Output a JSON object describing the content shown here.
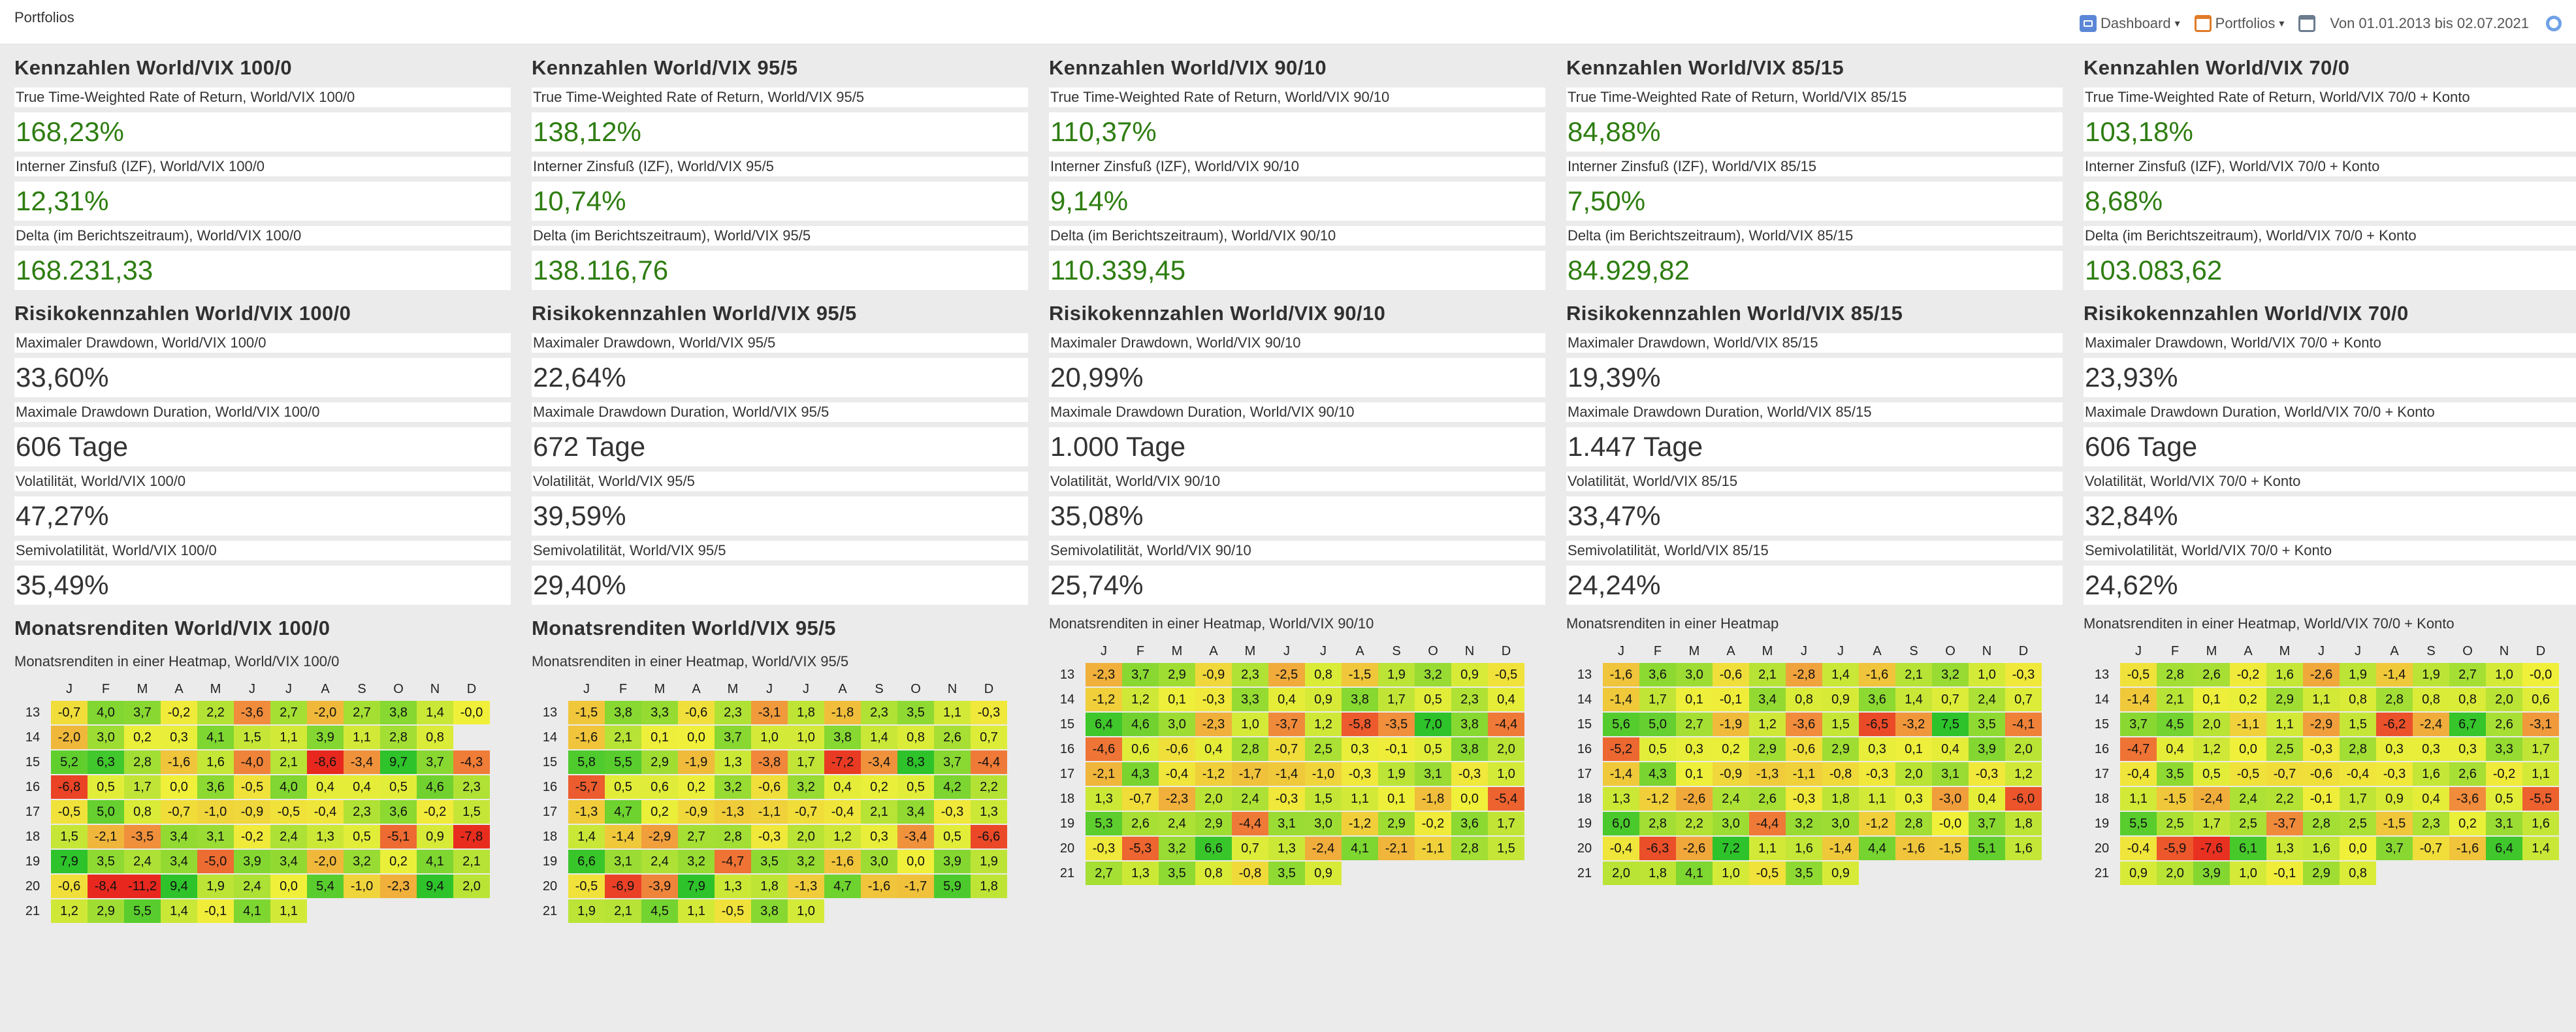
{
  "app": {
    "title": "Portfolios"
  },
  "toolbar": {
    "dashboard_label": "Dashboard",
    "portfolios_label": "Portfolios",
    "caret": "▾",
    "date_range": "Von 01.01.2013 bis 02.07.2021"
  },
  "colors": {
    "positive_value": "#2e7d11",
    "heat_neg_strong": "#e8281e",
    "heat_zero": "#f0f03a",
    "heat_pos_strong": "#2ec32a"
  },
  "months": [
    "J",
    "F",
    "M",
    "A",
    "M",
    "J",
    "J",
    "A",
    "S",
    "O",
    "N",
    "D"
  ],
  "portfolios": [
    {
      "kpi_title": "Kennzahlen World/VIX 100/0",
      "twr_label": "True Time-Weighted Rate of Return, World/VIX 100/0",
      "twr_value": "168,23%",
      "izf_label": "Interner Zinsfuß (IZF), World/VIX 100/0",
      "izf_value": "12,31%",
      "delta_label": "Delta (im Berichtszeitraum), World/VIX 100/0",
      "delta_value": "168.231,33",
      "risk_title": "Risikokennzahlen World/VIX 100/0",
      "mdd_label": "Maximaler Drawdown, World/VIX 100/0",
      "mdd_value": "33,60%",
      "mddd_label": "Maximale Drawdown Duration, World/VIX 100/0",
      "mddd_value": "606 Tage",
      "vol_label": "Volatilität, World/VIX 100/0",
      "vol_value": "47,27%",
      "semivol_label": "Semivolatilität, World/VIX 100/0",
      "semivol_value": "35,49%",
      "heatmap_title": "Monatsrenditen World/VIX 100/0",
      "heatmap_subtitle": "Monatsrenditen in einer Heatmap, World/VIX 100/0",
      "heatmap": [
        {
          "year": "13",
          "values": [
            "-0,7",
            "4,0",
            "3,7",
            "-0,2",
            "2,2",
            "-3,6",
            "2,7",
            "-2,0",
            "2,7",
            "3,8",
            "1,4",
            "-0,0"
          ]
        },
        {
          "year": "14",
          "values": [
            "-2,0",
            "3,0",
            "0,2",
            "0,3",
            "4,1",
            "1,5",
            "1,1",
            "3,9",
            "1,1",
            "2,8",
            "0,8",
            ""
          ]
        },
        {
          "year": "15",
          "values": [
            "5,2",
            "6,3",
            "2,8",
            "-1,6",
            "1,6",
            "-4,0",
            "2,1",
            "-8,6",
            "-3,4",
            "9,7",
            "3,7",
            "-4,3"
          ]
        },
        {
          "year": "16",
          "values": [
            "-6,8",
            "0,5",
            "1,7",
            "0,0",
            "3,6",
            "-0,5",
            "4,0",
            "0,4",
            "0,4",
            "0,5",
            "4,6",
            "2,3"
          ]
        },
        {
          "year": "17",
          "values": [
            "-0,5",
            "5,0",
            "0,8",
            "-0,7",
            "-1,0",
            "-0,9",
            "-0,5",
            "-0,4",
            "2,3",
            "3,6",
            "-0,2",
            "1,5"
          ]
        },
        {
          "year": "18",
          "values": [
            "1,5",
            "-2,1",
            "-3,5",
            "3,4",
            "3,1",
            "-0,2",
            "2,4",
            "1,3",
            "0,5",
            "-5,1",
            "0,9",
            "-7,8"
          ]
        },
        {
          "year": "19",
          "values": [
            "7,9",
            "3,5",
            "2,4",
            "3,4",
            "-5,0",
            "3,9",
            "3,4",
            "-2,0",
            "3,2",
            "0,2",
            "4,1",
            "2,1"
          ]
        },
        {
          "year": "20",
          "values": [
            "-0,6",
            "-8,4",
            "-11,2",
            "9,4",
            "1,9",
            "2,4",
            "0,0",
            "5,4",
            "-1,0",
            "-2,3",
            "9,4",
            "2,0"
          ]
        },
        {
          "year": "21",
          "values": [
            "1,2",
            "2,9",
            "5,5",
            "1,4",
            "-0,1",
            "4,1",
            "1,1",
            "",
            "",
            "",
            "",
            ""
          ]
        }
      ]
    },
    {
      "kpi_title": "Kennzahlen World/VIX 95/5",
      "twr_label": "True Time-Weighted Rate of Return, World/VIX 95/5",
      "twr_value": "138,12%",
      "izf_label": "Interner Zinsfuß (IZF), World/VIX 95/5",
      "izf_value": "10,74%",
      "delta_label": "Delta (im Berichtszeitraum), World/VIX 95/5",
      "delta_value": "138.116,76",
      "risk_title": "Risikokennzahlen World/VIX 95/5",
      "mdd_label": "Maximaler Drawdown, World/VIX 95/5",
      "mdd_value": "22,64%",
      "mddd_label": "Maximale Drawdown Duration, World/VIX 95/5",
      "mddd_value": "672 Tage",
      "vol_label": "Volatilität, World/VIX 95/5",
      "vol_value": "39,59%",
      "semivol_label": "Semivolatilität, World/VIX 95/5",
      "semivol_value": "29,40%",
      "heatmap_title": "Monatsrenditen World/VIX 95/5",
      "heatmap_subtitle": "Monatsrenditen in einer Heatmap, World/VIX 95/5",
      "heatmap": [
        {
          "year": "13",
          "values": [
            "-1,5",
            "3,8",
            "3,3",
            "-0,6",
            "2,3",
            "-3,1",
            "1,8",
            "-1,8",
            "2,3",
            "3,5",
            "1,1",
            "-0,3"
          ]
        },
        {
          "year": "14",
          "values": [
            "-1,6",
            "2,1",
            "0,1",
            "0,0",
            "3,7",
            "1,0",
            "1,0",
            "3,8",
            "1,4",
            "0,8",
            "2,6",
            "0,7"
          ]
        },
        {
          "year": "15",
          "values": [
            "5,8",
            "5,5",
            "2,9",
            "-1,9",
            "1,3",
            "-3,8",
            "1,7",
            "-7,2",
            "-3,4",
            "8,3",
            "3,7",
            "-4,4"
          ]
        },
        {
          "year": "16",
          "values": [
            "-5,7",
            "0,5",
            "0,6",
            "0,2",
            "3,2",
            "-0,6",
            "3,2",
            "0,4",
            "0,2",
            "0,5",
            "4,2",
            "2,2"
          ]
        },
        {
          "year": "17",
          "values": [
            "-1,3",
            "4,7",
            "0,2",
            "-0,9",
            "-1,3",
            "-1,1",
            "-0,7",
            "-0,4",
            "2,1",
            "3,4",
            "-0,3",
            "1,3"
          ]
        },
        {
          "year": "18",
          "values": [
            "1,4",
            "-1,4",
            "-2,9",
            "2,7",
            "2,8",
            "-0,3",
            "2,0",
            "1,2",
            "0,3",
            "-3,4",
            "0,5",
            "-6,6"
          ]
        },
        {
          "year": "19",
          "values": [
            "6,6",
            "3,1",
            "2,4",
            "3,2",
            "-4,7",
            "3,5",
            "3,2",
            "-1,6",
            "3,0",
            "0,0",
            "3,9",
            "1,9"
          ]
        },
        {
          "year": "20",
          "values": [
            "-0,5",
            "-6,9",
            "-3,9",
            "7,9",
            "1,3",
            "1,8",
            "-1,3",
            "4,7",
            "-1,6",
            "-1,7",
            "5,9",
            "1,8"
          ]
        },
        {
          "year": "21",
          "values": [
            "1,9",
            "2,1",
            "4,5",
            "1,1",
            "-0,5",
            "3,8",
            "1,0",
            "",
            "",
            "",
            "",
            ""
          ]
        }
      ]
    },
    {
      "kpi_title": "Kennzahlen World/VIX 90/10",
      "twr_label": "True Time-Weighted Rate of Return, World/VIX 90/10",
      "twr_value": "110,37%",
      "izf_label": "Interner Zinsfuß (IZF), World/VIX 90/10",
      "izf_value": "9,14%",
      "delta_label": "Delta (im Berichtszeitraum), World/VIX 90/10",
      "delta_value": "110.339,45",
      "risk_title": "Risikokennzahlen  World/VIX 90/10",
      "mdd_label": "Maximaler Drawdown, World/VIX 90/10",
      "mdd_value": "20,99%",
      "mddd_label": "Maximale Drawdown Duration, World/VIX 90/10",
      "mddd_value": "1.000 Tage",
      "vol_label": "Volatilität, World/VIX 90/10",
      "vol_value": "35,08%",
      "semivol_label": "Semivolatilität, World/VIX 90/10",
      "semivol_value": "25,74%",
      "heatmap_title": "",
      "heatmap_subtitle": "Monatsrenditen in einer Heatmap, World/VIX 90/10",
      "heatmap": [
        {
          "year": "13",
          "values": [
            "-2,3",
            "3,7",
            "2,9",
            "-0,9",
            "2,3",
            "-2,5",
            "0,8",
            "-1,5",
            "1,9",
            "3,2",
            "0,9",
            "-0,5"
          ]
        },
        {
          "year": "14",
          "values": [
            "-1,2",
            "1,2",
            "0,1",
            "-0,3",
            "3,3",
            "0,4",
            "0,9",
            "3,8",
            "1,7",
            "0,5",
            "2,3",
            "0,4"
          ]
        },
        {
          "year": "15",
          "values": [
            "6,4",
            "4,6",
            "3,0",
            "-2,3",
            "1,0",
            "-3,7",
            "1,2",
            "-5,8",
            "-3,5",
            "7,0",
            "3,8",
            "-4,4"
          ]
        },
        {
          "year": "16",
          "values": [
            "-4,6",
            "0,6",
            "-0,6",
            "0,4",
            "2,8",
            "-0,7",
            "2,5",
            "0,3",
            "-0,1",
            "0,5",
            "3,8",
            "2,0"
          ]
        },
        {
          "year": "17",
          "values": [
            "-2,1",
            "4,3",
            "-0,4",
            "-1,2",
            "-1,7",
            "-1,4",
            "-1,0",
            "-0,3",
            "1,9",
            "3,1",
            "-0,3",
            "1,0"
          ]
        },
        {
          "year": "18",
          "values": [
            "1,3",
            "-0,7",
            "-2,3",
            "2,0",
            "2,4",
            "-0,3",
            "1,5",
            "1,1",
            "0,1",
            "-1,8",
            "0,0",
            "-5,4"
          ]
        },
        {
          "year": "19",
          "values": [
            "5,3",
            "2,6",
            "2,4",
            "2,9",
            "-4,4",
            "3,1",
            "3,0",
            "-1,2",
            "2,9",
            "-0,2",
            "3,6",
            "1,7"
          ]
        },
        {
          "year": "20",
          "values": [
            "-0,3",
            "-5,3",
            "3,2",
            "6,6",
            "0,7",
            "1,3",
            "-2,4",
            "4,1",
            "-2,1",
            "-1,1",
            "2,8",
            "1,5"
          ]
        },
        {
          "year": "21",
          "values": [
            "2,7",
            "1,3",
            "3,5",
            "0,8",
            "-0,8",
            "3,5",
            "0,9",
            "",
            "",
            "",
            "",
            ""
          ]
        }
      ]
    },
    {
      "kpi_title": "Kennzahlen World/VIX 85/15",
      "twr_label": "True Time-Weighted Rate of Return, World/VIX 85/15",
      "twr_value": "84,88%",
      "izf_label": "Interner Zinsfuß (IZF), World/VIX 85/15",
      "izf_value": "7,50%",
      "delta_label": "Delta (im Berichtszeitraum), World/VIX 85/15",
      "delta_value": "84.929,82",
      "risk_title": "Risikokennzahlen World/VIX 85/15",
      "mdd_label": "Maximaler Drawdown, World/VIX 85/15",
      "mdd_value": "19,39%",
      "mddd_label": "Maximale Drawdown Duration, World/VIX 85/15",
      "mddd_value": "1.447 Tage",
      "vol_label": "Volatilität, World/VIX 85/15",
      "vol_value": "33,47%",
      "semivol_label": "Semivolatilität, World/VIX 85/15",
      "semivol_value": "24,24%",
      "heatmap_title": "",
      "heatmap_subtitle": "Monatsrenditen in einer Heatmap",
      "heatmap": [
        {
          "year": "13",
          "values": [
            "-1,6",
            "3,6",
            "3,0",
            "-0,6",
            "2,1",
            "-2,8",
            "1,4",
            "-1,6",
            "2,1",
            "3,2",
            "1,0",
            "-0,3"
          ]
        },
        {
          "year": "14",
          "values": [
            "-1,4",
            "1,7",
            "0,1",
            "-0,1",
            "3,4",
            "0,8",
            "0,9",
            "3,6",
            "1,4",
            "0,7",
            "2,4",
            "0,7"
          ]
        },
        {
          "year": "15",
          "values": [
            "5,6",
            "5,0",
            "2,7",
            "-1,9",
            "1,2",
            "-3,6",
            "1,5",
            "-6,5",
            "-3,2",
            "7,5",
            "3,5",
            "-4,1"
          ]
        },
        {
          "year": "16",
          "values": [
            "-5,2",
            "0,5",
            "0,3",
            "0,2",
            "2,9",
            "-0,6",
            "2,9",
            "0,3",
            "0,1",
            "0,4",
            "3,9",
            "2,0"
          ]
        },
        {
          "year": "17",
          "values": [
            "-1,4",
            "4,3",
            "0,1",
            "-0,9",
            "-1,3",
            "-1,1",
            "-0,8",
            "-0,3",
            "2,0",
            "3,1",
            "-0,3",
            "1,2"
          ]
        },
        {
          "year": "18",
          "values": [
            "1,3",
            "-1,2",
            "-2,6",
            "2,4",
            "2,6",
            "-0,3",
            "1,8",
            "1,1",
            "0,3",
            "-3,0",
            "0,4",
            "-6,0"
          ]
        },
        {
          "year": "19",
          "values": [
            "6,0",
            "2,8",
            "2,2",
            "3,0",
            "-4,4",
            "3,2",
            "3,0",
            "-1,2",
            "2,8",
            "-0,0",
            "3,7",
            "1,8"
          ]
        },
        {
          "year": "20",
          "values": [
            "-0,4",
            "-6,3",
            "-2,6",
            "7,2",
            "1,1",
            "1,6",
            "-1,4",
            "4,4",
            "-1,6",
            "-1,5",
            "5,1",
            "1,6"
          ]
        },
        {
          "year": "21",
          "values": [
            "2,0",
            "1,8",
            "4,1",
            "1,0",
            "-0,5",
            "3,5",
            "0,9",
            "",
            "",
            "",
            "",
            ""
          ]
        }
      ]
    },
    {
      "kpi_title": "Kennzahlen World/VIX 70/0",
      "twr_label": "True Time-Weighted Rate of Return, World/VIX 70/0 + Konto",
      "twr_value": "103,18%",
      "izf_label": "Interner Zinsfuß (IZF), World/VIX 70/0 + Konto",
      "izf_value": "8,68%",
      "delta_label": "Delta (im Berichtszeitraum), World/VIX 70/0 + Konto",
      "delta_value": "103.083,62",
      "risk_title": "Risikokennzahlen World/VIX 70/0",
      "mdd_label": "Maximaler Drawdown, World/VIX 70/0 + Konto",
      "mdd_value": "23,93%",
      "mddd_label": "Maximale Drawdown Duration, World/VIX 70/0 + Konto",
      "mddd_value": "606 Tage",
      "vol_label": "Volatilität, World/VIX 70/0 + Konto",
      "vol_value": "32,84%",
      "semivol_label": "Semivolatilität, World/VIX 70/0 + Konto",
      "semivol_value": "24,62%",
      "heatmap_title": "",
      "heatmap_subtitle": "Monatsrenditen in einer Heatmap, World/VIX 70/0 + Konto",
      "heatmap": [
        {
          "year": "13",
          "values": [
            "-0,5",
            "2,8",
            "2,6",
            "-0,2",
            "1,6",
            "-2,6",
            "1,9",
            "-1,4",
            "1,9",
            "2,7",
            "1,0",
            "-0,0"
          ]
        },
        {
          "year": "14",
          "values": [
            "-1,4",
            "2,1",
            "0,1",
            "0,2",
            "2,9",
            "1,1",
            "0,8",
            "2,8",
            "0,8",
            "0,8",
            "2,0",
            "0,6"
          ]
        },
        {
          "year": "15",
          "values": [
            "3,7",
            "4,5",
            "2,0",
            "-1,1",
            "1,1",
            "-2,9",
            "1,5",
            "-6,2",
            "-2,4",
            "6,7",
            "2,6",
            "-3,1"
          ]
        },
        {
          "year": "16",
          "values": [
            "-4,7",
            "0,4",
            "1,2",
            "0,0",
            "2,5",
            "-0,3",
            "2,8",
            "0,3",
            "0,3",
            "0,3",
            "3,3",
            "1,7"
          ]
        },
        {
          "year": "17",
          "values": [
            "-0,4",
            "3,5",
            "0,5",
            "-0,5",
            "-0,7",
            "-0,6",
            "-0,4",
            "-0,3",
            "1,6",
            "2,6",
            "-0,2",
            "1,1"
          ]
        },
        {
          "year": "18",
          "values": [
            "1,1",
            "-1,5",
            "-2,4",
            "2,4",
            "2,2",
            "-0,1",
            "1,7",
            "0,9",
            "0,4",
            "-3,6",
            "0,5",
            "-5,5"
          ]
        },
        {
          "year": "19",
          "values": [
            "5,5",
            "2,5",
            "1,7",
            "2,5",
            "-3,7",
            "2,8",
            "2,5",
            "-1,5",
            "2,3",
            "0,2",
            "3,1",
            "1,6"
          ]
        },
        {
          "year": "20",
          "values": [
            "-0,4",
            "-5,9",
            "-7,6",
            "6,1",
            "1,3",
            "1,6",
            "0,0",
            "3,7",
            "-0,7",
            "-1,6",
            "6,4",
            "1,4"
          ]
        },
        {
          "year": "21",
          "values": [
            "0,9",
            "2,0",
            "3,9",
            "1,0",
            "-0,1",
            "2,9",
            "0,8",
            "",
            "",
            "",
            "",
            ""
          ]
        }
      ]
    }
  ]
}
